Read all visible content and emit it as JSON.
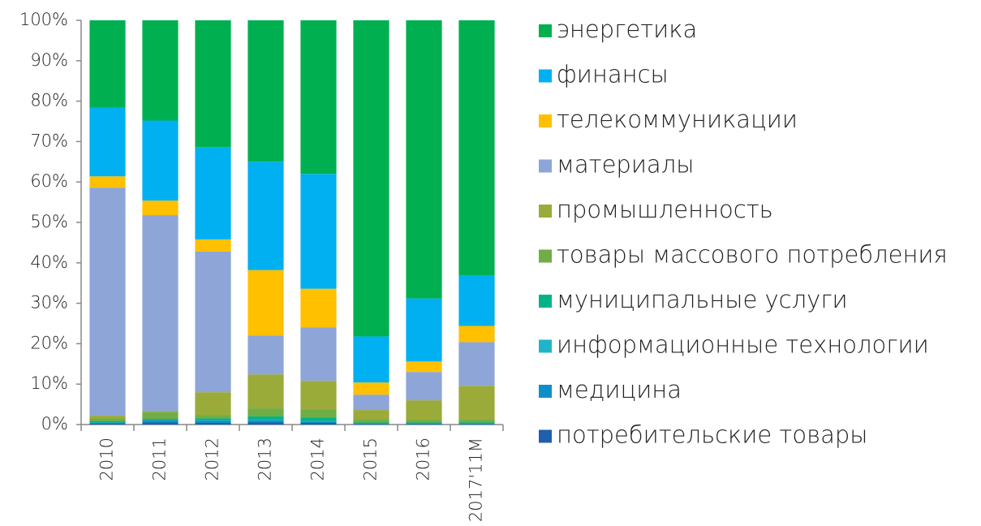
{
  "chart_data": {
    "type": "bar",
    "stacked": true,
    "categories": [
      "2010",
      "2011",
      "2012",
      "2013",
      "2014",
      "2015",
      "2016",
      "2017'11M"
    ],
    "series": [
      {
        "name": "потребительские товары",
        "color": "#1f5fad",
        "values": [
          0.2,
          0.5,
          0.4,
          0.5,
          0.4,
          0.1,
          0.1,
          0.1
        ]
      },
      {
        "name": "медицина",
        "color": "#0e8fc9",
        "values": [
          0.2,
          0.5,
          0.5,
          0.5,
          0.3,
          0.1,
          0.1,
          0.1
        ]
      },
      {
        "name": "информационные технологии",
        "color": "#1fb5c8",
        "values": [
          0.1,
          0.1,
          0.2,
          0.2,
          0.2,
          0.1,
          0.1,
          0.1
        ]
      },
      {
        "name": "муниципальные услуги",
        "color": "#00b386",
        "values": [
          0.3,
          0.3,
          0.4,
          0.8,
          0.8,
          0.2,
          0.2,
          0.2
        ]
      },
      {
        "name": "товары массового потребления",
        "color": "#70ad47",
        "values": [
          0.7,
          1.6,
          0.9,
          2.0,
          2.1,
          0.8,
          0.6,
          0.7
        ]
      },
      {
        "name": "промышленность",
        "color": "#9bab3a",
        "values": [
          0.7,
          0.3,
          5.6,
          8.4,
          7.0,
          2.3,
          4.9,
          8.4
        ]
      },
      {
        "name": "материалы",
        "color": "#8ea5d8",
        "values": [
          56.4,
          48.5,
          34.8,
          9.6,
          13.2,
          3.8,
          7.0,
          10.8
        ]
      },
      {
        "name": "телекоммуникации",
        "color": "#ffc000",
        "values": [
          2.8,
          3.6,
          3.0,
          16.2,
          9.6,
          3.0,
          2.6,
          4.0
        ]
      },
      {
        "name": "финансы",
        "color": "#00b0f0",
        "values": [
          17.0,
          19.8,
          22.8,
          26.8,
          28.4,
          11.4,
          15.6,
          12.4
        ]
      },
      {
        "name": "энергетика",
        "color": "#00b050",
        "values": [
          21.6,
          24.8,
          31.4,
          35.0,
          38.0,
          78.2,
          68.8,
          63.2
        ]
      }
    ],
    "ylim": [
      0,
      100
    ],
    "yticks": [
      {
        "value": 0,
        "label": "0%"
      },
      {
        "value": 10,
        "label": "10%"
      },
      {
        "value": 20,
        "label": "20%"
      },
      {
        "value": 30,
        "label": "30%"
      },
      {
        "value": 40,
        "label": "40%"
      },
      {
        "value": 50,
        "label": "50%"
      },
      {
        "value": 60,
        "label": "60%"
      },
      {
        "value": 70,
        "label": "70%"
      },
      {
        "value": 80,
        "label": "80%"
      },
      {
        "value": 90,
        "label": "90%"
      },
      {
        "value": 100,
        "label": "100%"
      }
    ],
    "legend": "right"
  }
}
